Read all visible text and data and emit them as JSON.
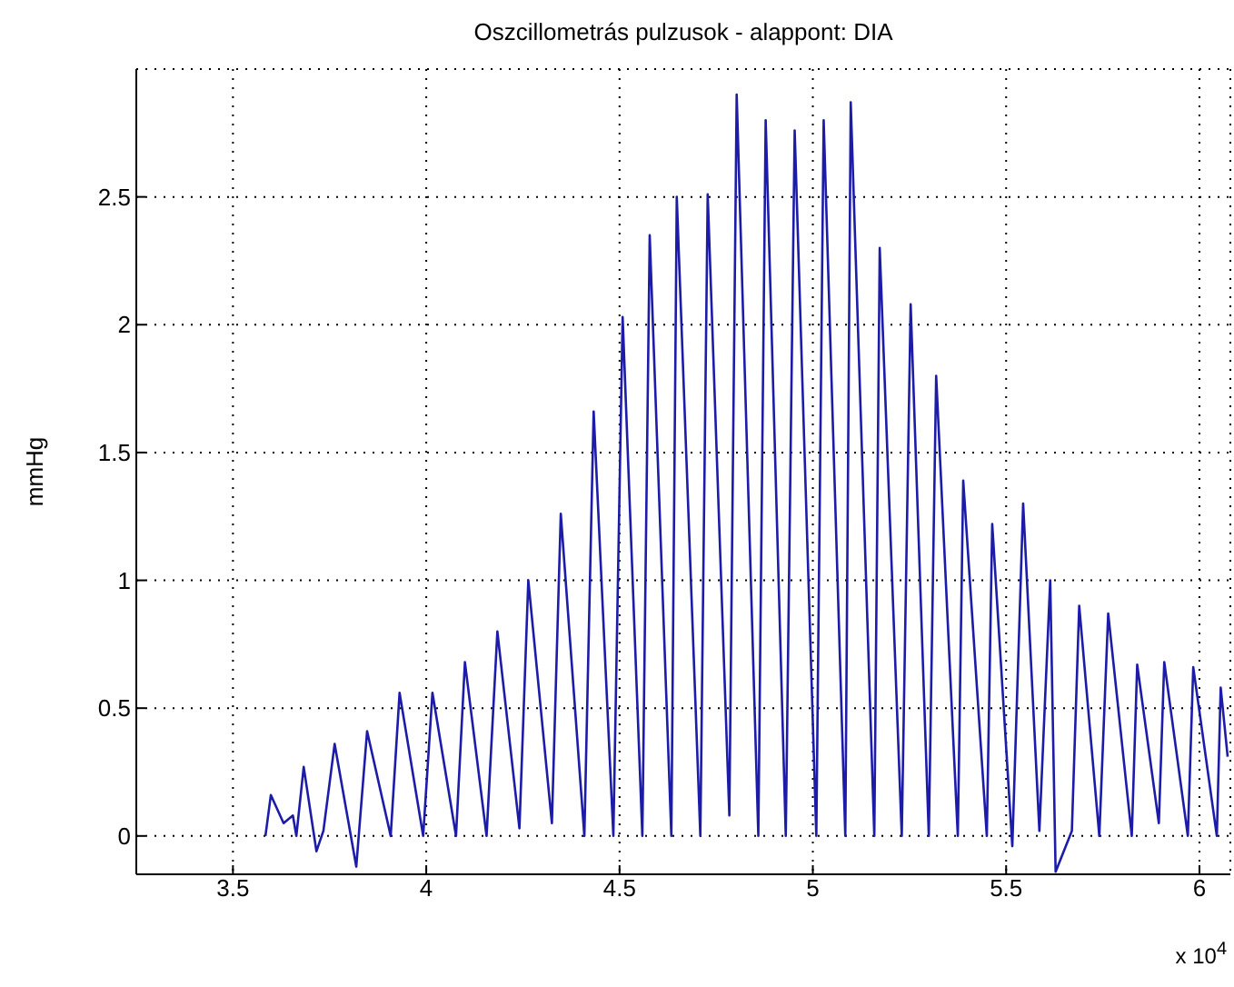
{
  "chart_data": {
    "type": "line",
    "title": "Oszcillometrás pulzusok - alappont: DIA",
    "ylabel": "mmHg",
    "annotations": [
      "x 10$^{4}$"
    ],
    "x": [
      3.584,
      3.598,
      3.631,
      3.655,
      3.664,
      3.683,
      3.716,
      3.734,
      3.763,
      3.819,
      3.847,
      3.908,
      3.931,
      3.992,
      4.016,
      4.077,
      4.1,
      4.156,
      4.184,
      4.241,
      4.264,
      4.325,
      4.348,
      4.409,
      4.433,
      4.484,
      4.508,
      4.559,
      4.578,
      4.634,
      4.648,
      4.709,
      4.728,
      4.784,
      4.803,
      4.859,
      4.878,
      4.93,
      4.953,
      5.009,
      5.028,
      5.084,
      5.098,
      5.159,
      5.173,
      5.23,
      5.253,
      5.3,
      5.319,
      5.375,
      5.389,
      5.45,
      5.464,
      5.516,
      5.544,
      5.586,
      5.614,
      5.628,
      5.67,
      5.689,
      5.741,
      5.764,
      5.825,
      5.839,
      5.895,
      5.909,
      5.97,
      5.984,
      6.045,
      6.055,
      6.073
    ],
    "series": [
      {
        "color": "#1c1ca8",
        "values": [
          0,
          0.16,
          0.05,
          0.08,
          0,
          0.27,
          -0.06,
          0.02,
          0.36,
          -0.12,
          0.41,
          0,
          0.56,
          0,
          0.56,
          0,
          0.68,
          0,
          0.8,
          0.03,
          1,
          0.05,
          1.26,
          0,
          1.66,
          0,
          2.03,
          0,
          2.35,
          0,
          2.5,
          0,
          2.51,
          0.08,
          2.9,
          0,
          2.8,
          0,
          2.76,
          0,
          2.8,
          0,
          2.87,
          0,
          2.3,
          0,
          2.08,
          0,
          1.8,
          0,
          1.39,
          0,
          1.22,
          -0.04,
          1.3,
          0.02,
          1,
          -0.14,
          0.02,
          0.9,
          0,
          0.87,
          0,
          0.67,
          0.05,
          0.68,
          0,
          0.66,
          0,
          0.58,
          0.31
        ]
      }
    ],
    "xlim": [
      3.25,
      6.08
    ],
    "xticks": [
      3.5,
      4,
      4.5,
      5,
      5.5,
      6
    ],
    "ylim": [
      -0.15,
      3
    ],
    "yticks": [
      0,
      0.5,
      1,
      1.5,
      2,
      2.5
    ],
    "grid": true,
    "line_style": "solid",
    "marker": "none",
    "legend": false
  }
}
